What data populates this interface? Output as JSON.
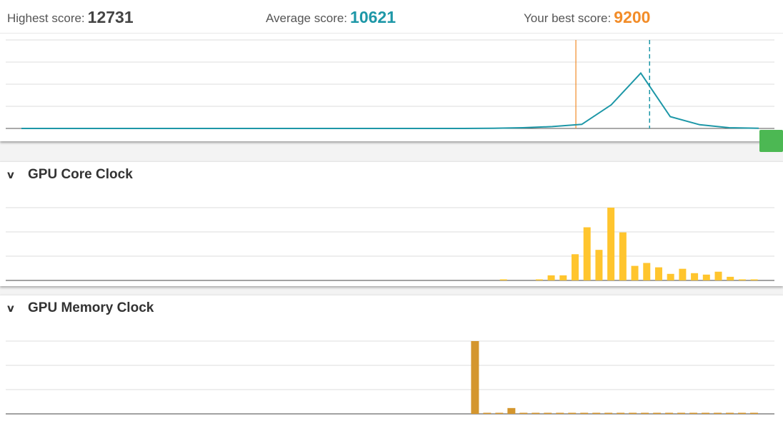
{
  "scores": {
    "highest_label": "Highest score:",
    "highest_value": "12731",
    "average_label": "Average score:",
    "average_value": "10621",
    "best_label": "Your best score:",
    "best_value": "9200"
  },
  "colors": {
    "highest": "#444444",
    "average": "#1d97a7",
    "best": "#f28c28",
    "core_bars": "#ffc52e",
    "memory_bars": "#d4962e",
    "handle": "#4cb853"
  },
  "panels": [
    {
      "title": "GPU Core Clock",
      "chevron": "v"
    },
    {
      "title": "GPU Memory Clock",
      "chevron": "v"
    }
  ],
  "chart_data": [
    {
      "type": "line",
      "series": [
        {
          "values": [
            0,
            0,
            0,
            0,
            0,
            0,
            0,
            0,
            0,
            0,
            0,
            0,
            0,
            0,
            0,
            0,
            0.3,
            1,
            2.5,
            5.5,
            32,
            75,
            16,
            5,
            1,
            0.3
          ]
        }
      ],
      "markers": {
        "your_best_index": 18.8,
        "average_index": 21.3
      },
      "ylim": [
        0,
        120
      ],
      "grid": true
    },
    {
      "type": "bar",
      "values": [
        0,
        0,
        0,
        0,
        0,
        0,
        0,
        0,
        0,
        0,
        0,
        0,
        0,
        0,
        0,
        0,
        0,
        0,
        0,
        0,
        0,
        0,
        0,
        0,
        0,
        0,
        0,
        0,
        0,
        0,
        0,
        0,
        0,
        0,
        0,
        0,
        0,
        0,
        0,
        0,
        0.5,
        0,
        0,
        0.5,
        7,
        7,
        36,
        73,
        42,
        100,
        66,
        20,
        24,
        18,
        9,
        16,
        10,
        8,
        12,
        5,
        1,
        1
      ],
      "ylim": [
        0,
        100
      ],
      "grid": true
    },
    {
      "type": "bar",
      "values": [
        0,
        0,
        0,
        0,
        0,
        0,
        0,
        0,
        0,
        0,
        0,
        0,
        0,
        0,
        0,
        0,
        0,
        0,
        0,
        0,
        0,
        0,
        0,
        0,
        0,
        0,
        0,
        0,
        0,
        0,
        0,
        0,
        0,
        0,
        0,
        0,
        0,
        100,
        1,
        1,
        8,
        1,
        0.5,
        1,
        0.5,
        0.5,
        0.5,
        0.5,
        1,
        1,
        0.5,
        0.5,
        0.5,
        0.5,
        0.5,
        1,
        1,
        0.5,
        0.5,
        0.5,
        0.5
      ],
      "ylim": [
        0,
        100
      ],
      "grid": true
    }
  ]
}
